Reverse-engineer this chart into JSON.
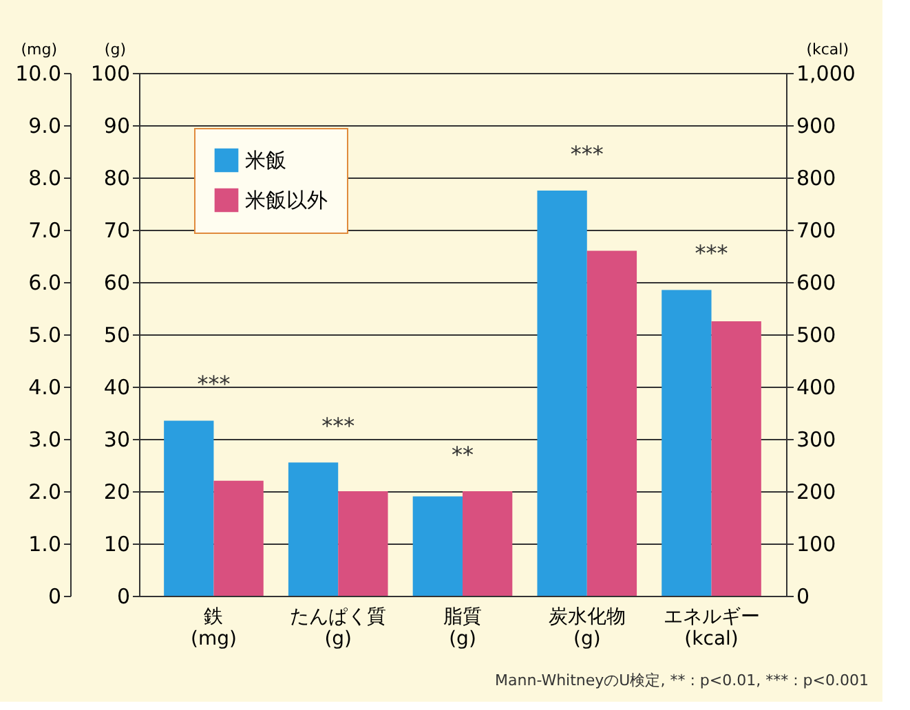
{
  "chart_data": {
    "type": "bar",
    "categories": [
      "鉄\n(mg)",
      "たんぱく質\n(g)",
      "脂質\n(g)",
      "炭水化物\n(g)",
      "エネルギー\n(kcal)"
    ],
    "series": [
      {
        "name": "米飯",
        "color": "#2a9ee0",
        "values": [
          33.5,
          25.5,
          19,
          77.5,
          58.5
        ]
      },
      {
        "name": "米飯以外",
        "color": "#d9507f",
        "values": [
          22,
          20,
          20,
          66,
          52.5
        ]
      }
    ],
    "ylabel": "(g)",
    "ylim": [
      0,
      100
    ],
    "yticks": [
      0,
      10,
      20,
      30,
      40,
      50,
      60,
      70,
      80,
      90,
      100
    ],
    "y3label": "(mg)",
    "y3lim": [
      0,
      10
    ],
    "y3ticks": [
      0,
      {
        "value": 1,
        "label": "1.0"
      },
      {
        "value": 2,
        "label": "2.0"
      },
      {
        "value": 3,
        "label": "3.0"
      },
      {
        "value": 4,
        "label": "4.0"
      },
      {
        "value": 5,
        "label": "5.0"
      },
      {
        "value": 6,
        "label": "6.0"
      },
      {
        "value": 7,
        "label": "7.0"
      },
      {
        "value": 8,
        "label": "8.0"
      },
      {
        "value": 9,
        "label": "9.0"
      },
      {
        "value": 10,
        "label": "10.0"
      }
    ],
    "y2label": "(kcal)",
    "y2lim": [
      0,
      1000
    ],
    "y2ticks": [
      0,
      100,
      200,
      300,
      400,
      500,
      600,
      700,
      800,
      900,
      {
        "value": 1000,
        "label": "1,000"
      }
    ],
    "grid": "y",
    "legend": "top left",
    "annotations": [
      "***",
      "***",
      "**",
      "***",
      "***",
      "Mann-WhitneyのU検定, ** : p<0.01, *** : p<0.001"
    ]
  }
}
